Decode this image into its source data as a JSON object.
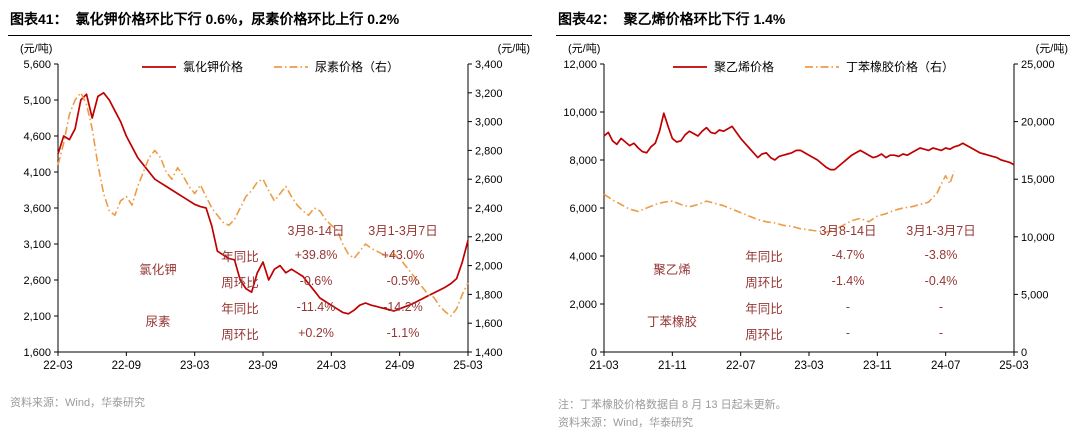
{
  "charts": [
    {
      "fig_label": "图表41：",
      "title": "氯化钾价格环比下行 0.6%，尿素价格环比上行 0.2%",
      "unit_left": "(元/吨)",
      "unit_right": "(元/吨)",
      "source": "资料来源：Wind，华泰研究",
      "table": {
        "headers": [
          "3月8-14日",
          "3月1-3月7日"
        ],
        "groups": [
          {
            "name": "氯化钾",
            "rows": [
              {
                "label": "年同比",
                "v1": "+39.8%",
                "v2": "+43.0%"
              },
              {
                "label": "周环比",
                "v1": "-0.6%",
                "v2": "-0.5%"
              }
            ]
          },
          {
            "name": "尿素",
            "rows": [
              {
                "label": "年同比",
                "v1": "-11.4%",
                "v2": "-14.2%"
              },
              {
                "label": "周环比",
                "v1": "+0.2%",
                "v2": "-1.1%"
              }
            ]
          }
        ]
      }
    },
    {
      "fig_label": "图表42：",
      "title": "聚乙烯价格环比下行 1.4%",
      "unit_left": "(元/吨)",
      "unit_right": "(元/吨)",
      "note": "注：丁苯橡胶价格数据自 8 月 13 日起未更新。",
      "source": "资料来源：Wind，华泰研究",
      "table": {
        "headers": [
          "3月8-14日",
          "3月1-3月7日"
        ],
        "groups": [
          {
            "name": "聚乙烯",
            "rows": [
              {
                "label": "年同比",
                "v1": "-4.7%",
                "v2": "-3.8%"
              },
              {
                "label": "周环比",
                "v1": "-1.4%",
                "v2": "-0.4%"
              }
            ]
          },
          {
            "name": "丁苯橡胶",
            "rows": [
              {
                "label": "年同比",
                "v1": "-",
                "v2": "-"
              },
              {
                "label": "周环比",
                "v1": "-",
                "v2": "-"
              }
            ]
          }
        ]
      }
    }
  ],
  "chart_data": [
    {
      "type": "line",
      "title": "氯化钾价格环比下行 0.6%，尿素价格环比上行 0.2%",
      "xlabel": "",
      "ylabel_left": "元/吨",
      "ylabel_right": "元/吨",
      "grid": false,
      "legend_position": "top-center",
      "x_ticks": [
        "22-03",
        "22-09",
        "23-03",
        "23-09",
        "24-03",
        "24-09",
        "25-03"
      ],
      "left_axis": {
        "min": 1600,
        "max": 5600,
        "step": 500
      },
      "right_axis": {
        "min": 1400,
        "max": 3400,
        "step": 200
      },
      "series": [
        {
          "name": "氯化钾价格",
          "axis": "left",
          "color": "#c00000",
          "dash": null,
          "width": 1.7,
          "span": 1,
          "values": [
            4350,
            4600,
            4550,
            4700,
            5100,
            5180,
            4850,
            5150,
            5200,
            5100,
            4950,
            4800,
            4600,
            4450,
            4300,
            4200,
            4100,
            4000,
            3950,
            3900,
            3850,
            3800,
            3750,
            3700,
            3650,
            3620,
            3600,
            3350,
            3000,
            2950,
            2900,
            2880,
            2600,
            2480,
            2430,
            2700,
            2850,
            2600,
            2750,
            2800,
            2700,
            2750,
            2700,
            2650,
            2550,
            2450,
            2350,
            2300,
            2250,
            2200,
            2150,
            2130,
            2180,
            2250,
            2280,
            2250,
            2230,
            2210,
            2190,
            2170,
            2200,
            2230,
            2260,
            2300,
            2340,
            2380,
            2420,
            2460,
            2500,
            2550,
            2620,
            2850,
            3150
          ]
        },
        {
          "name": "尿素价格（右）",
          "axis": "right",
          "color": "#ed9c45",
          "dash": "8 3 1.5 3",
          "width": 1.6,
          "span": 1,
          "values": [
            2700,
            2850,
            3050,
            3150,
            3200,
            3120,
            2950,
            2700,
            2500,
            2380,
            2350,
            2450,
            2480,
            2420,
            2550,
            2650,
            2750,
            2800,
            2750,
            2650,
            2600,
            2680,
            2620,
            2550,
            2500,
            2560,
            2480,
            2400,
            2350,
            2300,
            2280,
            2320,
            2400,
            2480,
            2520,
            2580,
            2600,
            2520,
            2450,
            2500,
            2550,
            2480,
            2420,
            2380,
            2350,
            2400,
            2380,
            2320,
            2280,
            2250,
            2150,
            2080,
            2050,
            2100,
            2150,
            2120,
            2100,
            2080,
            2060,
            2080,
            2050,
            2000,
            1950,
            1900,
            1850,
            1800,
            1780,
            1720,
            1680,
            1650,
            1700,
            1800,
            1880
          ]
        }
      ]
    },
    {
      "type": "line",
      "title": "聚乙烯价格环比下行 1.4%",
      "xlabel": "",
      "ylabel_left": "元/吨",
      "ylabel_right": "元/吨",
      "grid": false,
      "legend_position": "top-center",
      "x_ticks": [
        "21-03",
        "21-11",
        "22-07",
        "23-03",
        "23-11",
        "24-07",
        "25-03"
      ],
      "left_axis": {
        "min": 0,
        "max": 12000,
        "step": 2000
      },
      "right_axis": {
        "min": 0,
        "max": 25000,
        "step": 5000
      },
      "series": [
        {
          "name": "聚乙烯价格",
          "axis": "left",
          "color": "#c00000",
          "dash": null,
          "width": 1.7,
          "span": 1,
          "values": [
            9000,
            9150,
            8800,
            8650,
            8900,
            8750,
            8600,
            8700,
            8500,
            8350,
            8300,
            8550,
            8700,
            9200,
            9950,
            9400,
            8900,
            8750,
            8800,
            9050,
            9200,
            9100,
            9000,
            9200,
            9350,
            9150,
            9100,
            9250,
            9200,
            9300,
            9400,
            9150,
            8900,
            8700,
            8500,
            8300,
            8100,
            8250,
            8300,
            8100,
            8000,
            8150,
            8200,
            8250,
            8300,
            8400,
            8400,
            8300,
            8200,
            8100,
            8000,
            7850,
            7700,
            7600,
            7600,
            7750,
            7900,
            8050,
            8200,
            8300,
            8400,
            8300,
            8200,
            8100,
            8150,
            8250,
            8100,
            8200,
            8200,
            8150,
            8250,
            8200,
            8300,
            8400,
            8500,
            8450,
            8400,
            8500,
            8450,
            8400,
            8500,
            8450,
            8550,
            8600,
            8700,
            8600,
            8500,
            8400,
            8300,
            8250,
            8200,
            8150,
            8100,
            8000,
            7950,
            7900,
            7800
          ]
        },
        {
          "name": "丁苯橡胶价格（右）",
          "axis": "right",
          "color": "#ed9c45",
          "dash": "8 3 1.5 3",
          "width": 1.6,
          "span": 0.854,
          "values": [
            13700,
            13450,
            13200,
            13000,
            12800,
            12600,
            12400,
            12300,
            12200,
            12350,
            12500,
            12650,
            12800,
            12900,
            13000,
            13050,
            13100,
            12950,
            12800,
            12700,
            12600,
            12700,
            12800,
            12950,
            13100,
            13000,
            12900,
            12800,
            12700,
            12550,
            12400,
            12250,
            12100,
            11950,
            11800,
            11650,
            11500,
            11400,
            11300,
            11250,
            11200,
            11100,
            11000,
            10950,
            10900,
            10800,
            10700,
            10650,
            10600,
            10550,
            10500,
            10450,
            10400,
            10500,
            10600,
            10800,
            11000,
            11200,
            11400,
            11500,
            11600,
            11450,
            11300,
            11550,
            11800,
            11900,
            12000,
            12150,
            12300,
            12400,
            12500,
            12550,
            12600,
            12700,
            12800,
            12900,
            13000,
            13400,
            13800,
            14600,
            15300,
            14600,
            15700
          ]
        }
      ]
    }
  ]
}
